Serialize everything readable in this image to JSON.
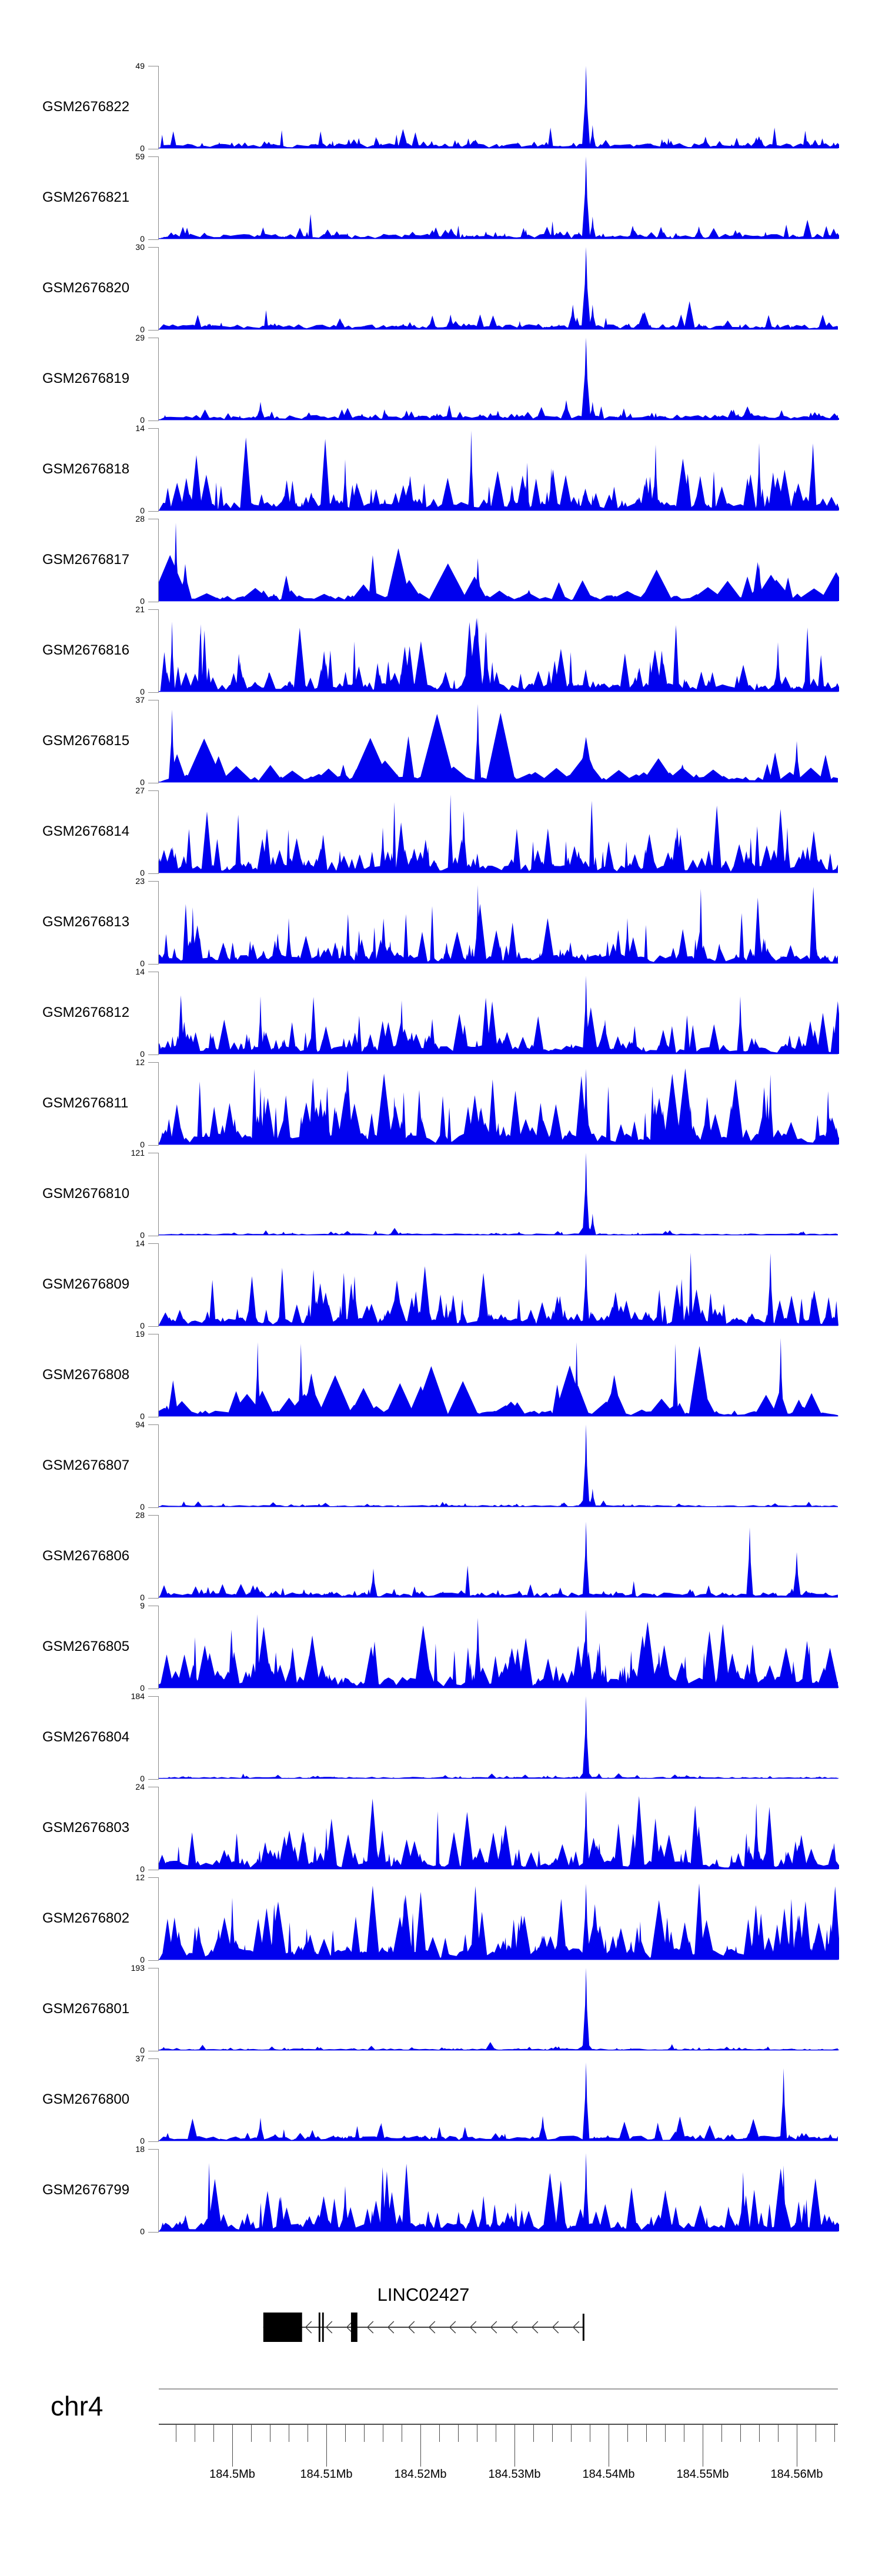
{
  "page": {
    "background": "#ffffff"
  },
  "colors": {
    "signal_fill": "#0000ee",
    "axis_bracket": "#8c8c8c",
    "separator": "#a0a0a0",
    "ruler": "#4d4d4d",
    "gene_black": "#000000",
    "chevron": "#3c3c3c",
    "text": "#000000"
  },
  "labels": {
    "gene_title": "LINC02427",
    "chromosome": "chr4",
    "y_zero": "0"
  },
  "chart_data": {
    "type": "area",
    "description": "Genome browser coverage tracks (read-depth histograms) for 24 GEO samples over chr4:184.492-184.564 Mb around LINC02427; shared sharp peak near 184.5376 Mb at the gene 5' end",
    "region": {
      "chromosome": "chr4",
      "start_mb": 184.49219,
      "end_mb": 184.56438
    },
    "xlabel": "chr4 position (Mb)",
    "axis": {
      "minor_step_mb": 0.002,
      "minor_start_mb": 184.494,
      "minor_end_mb": 184.564,
      "major_ticks": [
        {
          "mb": 184.5,
          "label": "184.5Mb"
        },
        {
          "mb": 184.51,
          "label": "184.51Mb"
        },
        {
          "mb": 184.52,
          "label": "184.52Mb"
        },
        {
          "mb": 184.53,
          "label": "184.53Mb"
        },
        {
          "mb": 184.54,
          "label": "184.54Mb"
        },
        {
          "mb": 184.55,
          "label": "184.55Mb"
        },
        {
          "mb": 184.56,
          "label": "184.56Mb"
        }
      ]
    },
    "gene": {
      "name": "LINC02427",
      "strand": "-",
      "line_start_mb": 184.5033,
      "line_end_mb": 184.5374,
      "exons_mb": [
        {
          "start": 184.5033,
          "end": 184.50742
        },
        {
          "start": 184.50918,
          "end": 184.50936
        },
        {
          "start": 184.50955,
          "end": 184.50973
        },
        {
          "start": 184.51262,
          "end": 184.5133
        }
      ],
      "end_bar_mb": {
        "start": 184.53724,
        "end": 184.53742
      }
    },
    "main_peak_mb": 184.5376,
    "tracks": [
      {
        "label": "GSM2676822",
        "ymax": 49,
        "style": "low",
        "seed": 11,
        "peaks": [
          {
            "mb": 184.5376,
            "h": 1.0,
            "w": 7
          },
          {
            "mb": 184.5383,
            "h": 0.28,
            "w": 6
          },
          {
            "mb": 184.5503,
            "h": 0.14,
            "w": 10
          },
          {
            "mb": 184.5557,
            "h": 0.13,
            "w": 12
          }
        ]
      },
      {
        "label": "GSM2676821",
        "ymax": 59,
        "style": "low",
        "seed": 23,
        "peaks": [
          {
            "mb": 184.5376,
            "h": 1.0,
            "w": 7
          },
          {
            "mb": 184.5383,
            "h": 0.27,
            "w": 6
          },
          {
            "mb": 184.5496,
            "h": 0.15,
            "w": 9
          }
        ]
      },
      {
        "label": "GSM2676820",
        "ymax": 30,
        "style": "low",
        "seed": 37,
        "peaks": [
          {
            "mb": 184.5376,
            "h": 1.0,
            "w": 8
          },
          {
            "mb": 184.5362,
            "h": 0.3,
            "w": 9
          },
          {
            "mb": 184.5383,
            "h": 0.3,
            "w": 7
          },
          {
            "mb": 184.5232,
            "h": 0.18,
            "w": 9
          }
        ]
      },
      {
        "label": "GSM2676819",
        "ymax": 29,
        "style": "low",
        "seed": 41,
        "peaks": [
          {
            "mb": 184.5376,
            "h": 1.0,
            "w": 8
          },
          {
            "mb": 184.5355,
            "h": 0.24,
            "w": 10
          },
          {
            "mb": 184.5383,
            "h": 0.22,
            "w": 7
          },
          {
            "mb": 184.503,
            "h": 0.22,
            "w": 8
          }
        ]
      },
      {
        "label": "GSM2676818",
        "ymax": 14,
        "style": "dense",
        "seed": 55,
        "peaks": [
          {
            "mb": 184.5254,
            "h": 0.97,
            "w": 5
          },
          {
            "mb": 184.512,
            "h": 0.62,
            "w": 5
          },
          {
            "mb": 184.545,
            "h": 0.8,
            "w": 5
          },
          {
            "mb": 184.556,
            "h": 0.82,
            "w": 5
          }
        ]
      },
      {
        "label": "GSM2676817",
        "ymax": 28,
        "style": "broad",
        "seed": 67,
        "peaks": [
          {
            "mb": 184.494,
            "h": 0.95,
            "w": 6
          },
          {
            "mb": 184.495,
            "h": 0.45,
            "w": 12
          },
          {
            "mb": 184.5261,
            "h": 0.52,
            "w": 7
          },
          {
            "mb": 184.556,
            "h": 0.45,
            "w": 8
          }
        ]
      },
      {
        "label": "GSM2676816",
        "ymax": 21,
        "style": "dense",
        "seed": 71,
        "peaks": [
          {
            "mb": 184.4936,
            "h": 0.85,
            "w": 5
          },
          {
            "mb": 184.5261,
            "h": 0.9,
            "w": 6
          },
          {
            "mb": 184.527,
            "h": 0.55,
            "w": 9
          },
          {
            "mb": 184.558,
            "h": 0.6,
            "w": 6
          }
        ]
      },
      {
        "label": "GSM2676815",
        "ymax": 37,
        "style": "broad",
        "seed": 83,
        "peaks": [
          {
            "mb": 184.4936,
            "h": 0.88,
            "w": 6
          },
          {
            "mb": 184.5261,
            "h": 0.95,
            "w": 6
          },
          {
            "mb": 184.5376,
            "h": 0.55,
            "w": 22
          },
          {
            "mb": 184.56,
            "h": 0.5,
            "w": 7
          }
        ]
      },
      {
        "label": "GSM2676814",
        "ymax": 27,
        "style": "dense",
        "seed": 89,
        "peaks": [
          {
            "mb": 184.5232,
            "h": 0.95,
            "w": 5
          },
          {
            "mb": 184.5246,
            "h": 0.75,
            "w": 7
          },
          {
            "mb": 184.516,
            "h": 0.55,
            "w": 6
          },
          {
            "mb": 184.559,
            "h": 0.55,
            "w": 6
          }
        ]
      },
      {
        "label": "GSM2676813",
        "ymax": 23,
        "style": "dense",
        "seed": 97,
        "peaks": [
          {
            "mb": 184.5261,
            "h": 0.95,
            "w": 5
          },
          {
            "mb": 184.4958,
            "h": 0.68,
            "w": 6
          },
          {
            "mb": 184.506,
            "h": 0.55,
            "w": 6
          },
          {
            "mb": 184.542,
            "h": 0.55,
            "w": 6
          }
        ]
      },
      {
        "label": "GSM2676812",
        "ymax": 14,
        "style": "dense",
        "seed": 101,
        "peaks": [
          {
            "mb": 184.5376,
            "h": 0.95,
            "w": 6
          },
          {
            "mb": 184.503,
            "h": 0.7,
            "w": 5
          },
          {
            "mb": 184.518,
            "h": 0.65,
            "w": 6
          },
          {
            "mb": 184.554,
            "h": 0.7,
            "w": 6
          }
        ]
      },
      {
        "label": "GSM2676811",
        "ymax": 12,
        "style": "tall",
        "seed": 103,
        "peaks": [
          {
            "mb": 184.5376,
            "h": 0.92,
            "w": 7
          },
          {
            "mb": 184.503,
            "h": 0.7,
            "w": 6
          },
          {
            "mb": 184.5572,
            "h": 0.85,
            "w": 6
          }
        ]
      },
      {
        "label": "GSM2676810",
        "ymax": 121,
        "style": "spike",
        "seed": 107,
        "peaks": [
          {
            "mb": 184.5376,
            "h": 1.0,
            "w": 6
          },
          {
            "mb": 184.5376,
            "h": 0.2,
            "w": 14
          },
          {
            "mb": 184.5383,
            "h": 0.26,
            "w": 6
          }
        ]
      },
      {
        "label": "GSM2676809",
        "ymax": 14,
        "style": "dense",
        "seed": 109,
        "peaks": [
          {
            "mb": 184.5376,
            "h": 0.88,
            "w": 6
          },
          {
            "mb": 184.5175,
            "h": 0.55,
            "w": 18
          },
          {
            "mb": 184.5572,
            "h": 0.88,
            "w": 6
          },
          {
            "mb": 184.513,
            "h": 0.6,
            "w": 8
          }
        ]
      },
      {
        "label": "GSM2676808",
        "ymax": 19,
        "style": "broad",
        "seed": 113,
        "peaks": [
          {
            "mb": 184.5027,
            "h": 0.9,
            "w": 5
          },
          {
            "mb": 184.5073,
            "h": 0.88,
            "w": 5
          },
          {
            "mb": 184.5084,
            "h": 0.52,
            "w": 24
          },
          {
            "mb": 184.5366,
            "h": 0.9,
            "w": 5
          },
          {
            "mb": 184.5406,
            "h": 0.5,
            "w": 22
          },
          {
            "mb": 184.5471,
            "h": 0.88,
            "w": 5
          },
          {
            "mb": 184.5583,
            "h": 0.95,
            "w": 5
          }
        ]
      },
      {
        "label": "GSM2676807",
        "ymax": 94,
        "style": "spike",
        "seed": 127,
        "peaks": [
          {
            "mb": 184.5376,
            "h": 1.0,
            "w": 6
          },
          {
            "mb": 184.5376,
            "h": 0.18,
            "w": 13
          },
          {
            "mb": 184.5383,
            "h": 0.22,
            "w": 6
          }
        ]
      },
      {
        "label": "GSM2676806",
        "ymax": 28,
        "style": "low",
        "seed": 131,
        "peaks": [
          {
            "mb": 184.5376,
            "h": 0.92,
            "w": 6
          },
          {
            "mb": 184.515,
            "h": 0.35,
            "w": 7
          },
          {
            "mb": 184.555,
            "h": 0.85,
            "w": 6
          },
          {
            "mb": 184.56,
            "h": 0.55,
            "w": 7
          }
        ]
      },
      {
        "label": "GSM2676805",
        "ymax": 9,
        "style": "tall",
        "seed": 137,
        "peaks": [
          {
            "mb": 184.5376,
            "h": 0.95,
            "w": 7
          },
          {
            "mb": 184.5261,
            "h": 0.85,
            "w": 7
          }
        ]
      },
      {
        "label": "GSM2676804",
        "ymax": 184,
        "style": "spike",
        "seed": 139,
        "peaks": [
          {
            "mb": 184.5376,
            "h": 1.0,
            "w": 6
          },
          {
            "mb": 184.5376,
            "h": 0.16,
            "w": 12
          }
        ]
      },
      {
        "label": "GSM2676803",
        "ymax": 24,
        "style": "dense",
        "seed": 149,
        "peaks": [
          {
            "mb": 184.5376,
            "h": 0.95,
            "w": 6
          },
          {
            "mb": 184.5557,
            "h": 0.8,
            "w": 6
          },
          {
            "mb": 184.51,
            "h": 0.5,
            "w": 6
          }
        ]
      },
      {
        "label": "GSM2676802",
        "ymax": 12,
        "style": "tall",
        "seed": 151,
        "peaks": [
          {
            "mb": 184.5376,
            "h": 0.92,
            "w": 7
          },
          {
            "mb": 184.5,
            "h": 0.75,
            "w": 6
          }
        ]
      },
      {
        "label": "GSM2676801",
        "ymax": 193,
        "style": "spike",
        "seed": 157,
        "peaks": [
          {
            "mb": 184.5376,
            "h": 1.0,
            "w": 6
          },
          {
            "mb": 184.5376,
            "h": 0.15,
            "w": 12
          }
        ]
      },
      {
        "label": "GSM2676800",
        "ymax": 37,
        "style": "low",
        "seed": 163,
        "peaks": [
          {
            "mb": 184.5376,
            "h": 0.95,
            "w": 6
          },
          {
            "mb": 184.533,
            "h": 0.3,
            "w": 8
          },
          {
            "mb": 184.503,
            "h": 0.28,
            "w": 7
          },
          {
            "mb": 184.5586,
            "h": 0.88,
            "w": 6
          }
        ]
      },
      {
        "label": "GSM2676799",
        "ymax": 18,
        "style": "dense",
        "seed": 167,
        "peaks": [
          {
            "mb": 184.5376,
            "h": 0.95,
            "w": 6
          },
          {
            "mb": 184.5543,
            "h": 0.72,
            "w": 6
          },
          {
            "mb": 184.5586,
            "h": 0.8,
            "w": 6
          },
          {
            "mb": 184.512,
            "h": 0.55,
            "w": 7
          }
        ]
      }
    ]
  },
  "signal_styles": {
    "spike": {
      "bg": 0.012,
      "n": 150,
      "h": 0.028,
      "wmin": 3,
      "wmax": 9
    },
    "low": {
      "bg": 0.035,
      "n": 170,
      "h": 0.085,
      "wmin": 3,
      "wmax": 11
    },
    "dense": {
      "bg": 0.06,
      "n": 215,
      "h": 0.3,
      "wmin": 3,
      "wmax": 13
    },
    "tall": {
      "bg": 0.08,
      "n": 225,
      "h": 0.43,
      "wmin": 3,
      "wmax": 15
    },
    "broad": {
      "bg": 0.04,
      "n": 85,
      "h": 0.3,
      "wmin": 7,
      "wmax": 34
    }
  }
}
